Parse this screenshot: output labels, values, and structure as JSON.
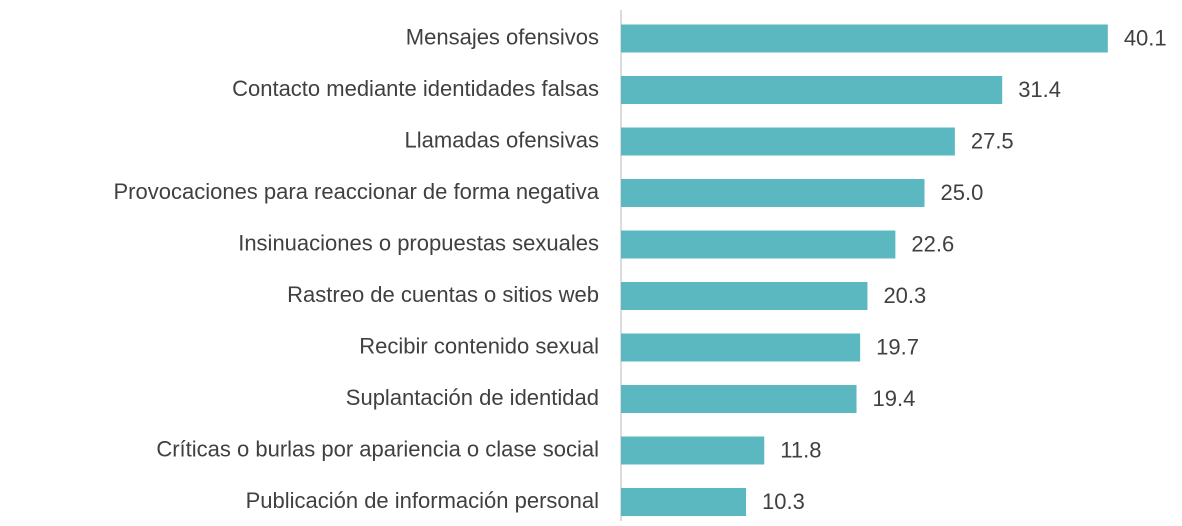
{
  "chart_data": {
    "type": "bar",
    "orientation": "horizontal",
    "categories": [
      "Mensajes ofensivos",
      "Contacto mediante identidades falsas",
      "Llamadas ofensivas",
      "Provocaciones para reaccionar de forma negativa",
      "Insinuaciones o propuestas sexuales",
      "Rastreo de cuentas o sitios web",
      "Recibir contenido sexual",
      "Suplantación de identidad",
      "Críticas o burlas por apariencia o clase social",
      "Publicación de información personal"
    ],
    "values": [
      40.1,
      31.4,
      27.5,
      25.0,
      22.6,
      20.3,
      19.7,
      19.4,
      11.8,
      10.3
    ],
    "value_labels": [
      "40.1",
      "31.4",
      "27.5",
      "25.0",
      "22.6",
      "20.3",
      "19.7",
      "19.4",
      "11.8",
      "10.3"
    ],
    "color": "#5bb8c1"
  }
}
